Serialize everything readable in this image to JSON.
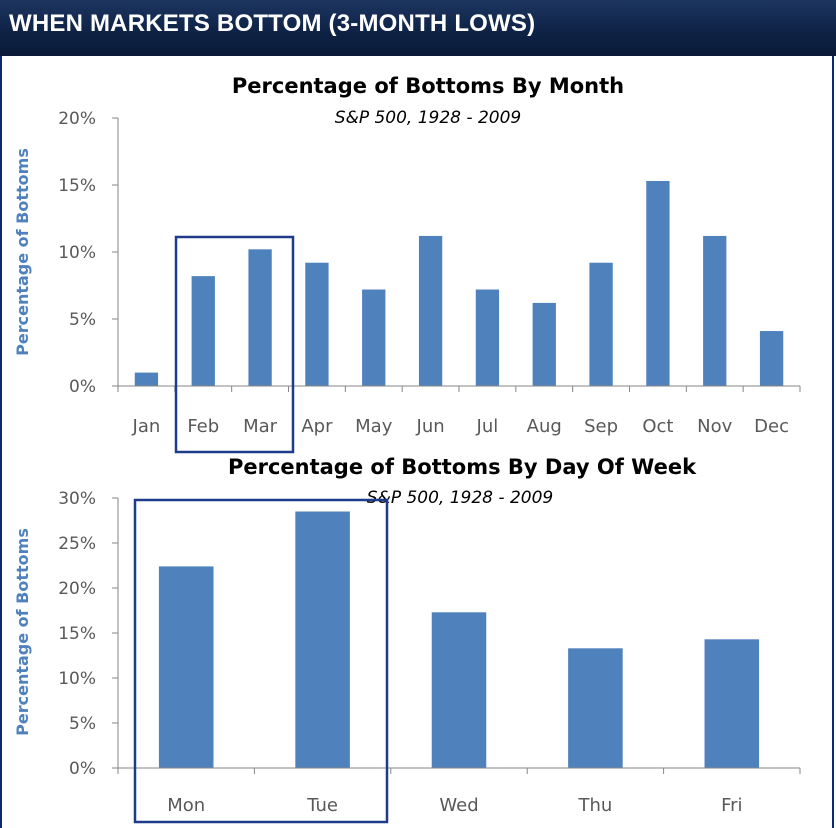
{
  "header": {
    "title": "WHEN MARKETS BOTTOM (3-MONTH LOWS)"
  },
  "colors": {
    "bar": "#4f81bd",
    "header_bg": "#0f2346",
    "highlight_box": "#1f3c8a"
  },
  "chart_data": [
    {
      "type": "bar",
      "title": "Percentage of Bottoms By Month",
      "subtitle": "S&P 500, 1928 - 2009",
      "xlabel": "",
      "ylabel": "Percentage of Bottoms",
      "ylim": [
        0,
        20
      ],
      "yticks": [
        "0%",
        "5%",
        "10%",
        "15%",
        "20%"
      ],
      "ytick_values": [
        0,
        5,
        10,
        15,
        20
      ],
      "categories": [
        "Jan",
        "Feb",
        "Mar",
        "Apr",
        "May",
        "Jun",
        "Jul",
        "Aug",
        "Sep",
        "Oct",
        "Nov",
        "Dec"
      ],
      "values": [
        1,
        8.2,
        10.2,
        9.2,
        7.2,
        11.2,
        7.2,
        6.2,
        9.2,
        15.3,
        11.2,
        4.1
      ],
      "highlighted": [
        "Feb",
        "Mar"
      ]
    },
    {
      "type": "bar",
      "title": "Percentage of Bottoms By Day Of Week",
      "subtitle": "S&P 500, 1928 - 2009",
      "xlabel": "",
      "ylabel": "Percentage of Bottoms",
      "ylim": [
        0,
        30
      ],
      "yticks": [
        "0%",
        "5%",
        "10%",
        "15%",
        "20%",
        "25%",
        "30%"
      ],
      "ytick_values": [
        0,
        5,
        10,
        15,
        20,
        25,
        30
      ],
      "categories": [
        "Mon",
        "Tue",
        "Wed",
        "Thu",
        "Fri"
      ],
      "values": [
        22.4,
        28.5,
        17.3,
        13.3,
        14.3
      ],
      "highlighted": [
        "Mon",
        "Tue"
      ]
    }
  ]
}
